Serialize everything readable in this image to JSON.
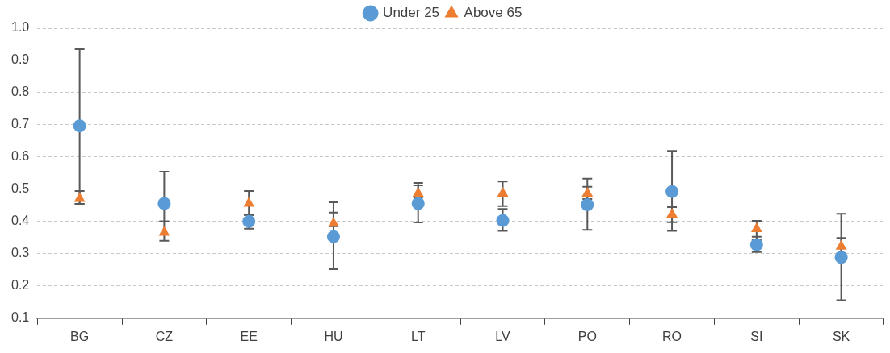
{
  "chart_data": {
    "type": "scatter",
    "categories": [
      "BG",
      "CZ",
      "EE",
      "HU",
      "LT",
      "LV",
      "PO",
      "RO",
      "SI",
      "SK"
    ],
    "series": [
      {
        "name": "Under 25",
        "color": "#5b9bd5",
        "marker": "circle",
        "values": [
          0.697,
          0.456,
          0.4,
          0.353,
          0.456,
          0.403,
          0.452,
          0.493,
          0.328,
          0.289
        ],
        "errors": [
          [
            0.455,
            0.935
          ],
          [
            0.4,
            0.555
          ],
          [
            0.378,
            0.42
          ],
          [
            0.252,
            0.428
          ],
          [
            0.397,
            0.512
          ],
          [
            0.371,
            0.439
          ],
          [
            0.374,
            0.508
          ],
          [
            0.371,
            0.619
          ],
          [
            0.305,
            0.353
          ],
          [
            0.156,
            0.424
          ]
        ]
      },
      {
        "name": "Above 65",
        "color": "#ed7d31",
        "marker": "triangle",
        "values": [
          0.471,
          0.366,
          0.456,
          0.394,
          0.487,
          0.487,
          0.487,
          0.422,
          0.377,
          0.323
        ],
        "errors": [
          [
            0.455,
            0.495
          ],
          [
            0.34,
            0.4
          ],
          [
            0.42,
            0.495
          ],
          [
            0.385,
            0.46
          ],
          [
            0.475,
            0.52
          ],
          [
            0.448,
            0.524
          ],
          [
            0.47,
            0.533
          ],
          [
            0.398,
            0.445
          ],
          [
            0.342,
            0.402
          ],
          [
            0.3,
            0.349
          ]
        ]
      }
    ],
    "ylim": [
      0.1,
      1.0
    ],
    "yticks": [
      0.1,
      0.2,
      0.3,
      0.4,
      0.5,
      0.6,
      0.7,
      0.8,
      0.9,
      {
        "value": 1,
        "label": "1.0"
      }
    ],
    "grid": "y",
    "legend": "top"
  }
}
